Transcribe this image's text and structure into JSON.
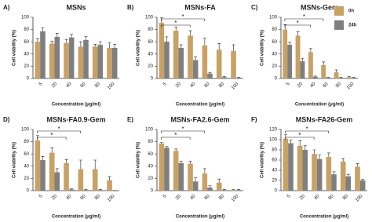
{
  "chart_data": [
    {
      "type": "bar",
      "panel_label": "A)",
      "title": "MSNs",
      "xlabel": "Concentration (μg/ml)",
      "ylabel": "Cell viability (%)",
      "categories": [
        "5",
        "20",
        "40",
        "60",
        "80",
        "100"
      ],
      "series": [
        {
          "color": "#c8a165",
          "values": [
            60,
            57,
            58,
            52,
            52,
            50
          ],
          "errors": [
            5,
            4,
            6,
            8,
            4,
            8
          ]
        },
        {
          "color": "#7f7f7f",
          "values": [
            77,
            68,
            67,
            63,
            55,
            50
          ],
          "errors": [
            6,
            6,
            5,
            6,
            5,
            6
          ]
        }
      ],
      "ylim": [
        0,
        100
      ],
      "yticks": [
        0,
        20,
        40,
        60,
        80,
        100
      ],
      "annotations": []
    },
    {
      "type": "bar",
      "panel_label": "B)",
      "title": "MSNs-FA",
      "xlabel": "Concentration (μg/ml)",
      "ylabel": "Cell viability (%)",
      "categories": [
        "5",
        "20",
        "40",
        "60",
        "80",
        "100"
      ],
      "series": [
        {
          "color": "#c8a165",
          "values": [
            91,
            78,
            70,
            54,
            47,
            45
          ],
          "errors": [
            8,
            6,
            8,
            12,
            10,
            10
          ]
        },
        {
          "color": "#7f7f7f",
          "values": [
            60,
            50,
            30,
            8,
            2,
            1
          ],
          "errors": [
            8,
            5,
            5,
            2,
            1,
            1
          ]
        }
      ],
      "ylim": [
        0,
        100
      ],
      "yticks": [
        0,
        20,
        40,
        60,
        80,
        100
      ],
      "annotations": [
        "*",
        "*"
      ]
    },
    {
      "type": "bar",
      "panel_label": "C)",
      "title": "MSNs-Gem",
      "xlabel": "Concentration (μg/ml)",
      "ylabel": "Cell viability (%)",
      "categories": [
        "5",
        "20",
        "40",
        "60",
        "80",
        "100"
      ],
      "series": [
        {
          "name": "0h",
          "color": "#c8a165",
          "values": [
            80,
            70,
            43,
            22,
            10,
            2
          ],
          "errors": [
            8,
            6,
            6,
            5,
            4,
            1
          ]
        },
        {
          "name": "24h",
          "color": "#7f7f7f",
          "values": [
            55,
            28,
            3,
            1,
            1,
            1
          ],
          "errors": [
            4,
            5,
            1,
            1,
            1,
            1
          ]
        }
      ],
      "ylim": [
        0,
        100
      ],
      "yticks": [
        0,
        20,
        40,
        60,
        80,
        100
      ],
      "annotations": [
        "*",
        "*"
      ]
    },
    {
      "type": "bar",
      "panel_label": "D)",
      "title": "MSNs-FA0.9-Gem",
      "xlabel": "Concentration (μg/ml)",
      "ylabel": "Cell viability (%)",
      "categories": [
        "5",
        "20",
        "40",
        "60",
        "80",
        "100"
      ],
      "series": [
        {
          "color": "#c8a165",
          "values": [
            82,
            62,
            45,
            35,
            35,
            17
          ],
          "errors": [
            8,
            8,
            6,
            15,
            15,
            6
          ]
        },
        {
          "color": "#7f7f7f",
          "values": [
            50,
            30,
            2,
            1,
            1,
            0
          ],
          "errors": [
            6,
            6,
            1,
            1,
            1,
            0
          ]
        }
      ],
      "ylim": [
        0,
        100
      ],
      "yticks": [
        0,
        20,
        40,
        60,
        80,
        100
      ],
      "annotations": [
        "*",
        "*"
      ]
    },
    {
      "type": "bar",
      "panel_label": "E)",
      "title": "MSNs-FA2.6-Gem",
      "xlabel": "Concentration (μg/ml)",
      "ylabel": "Cell viability (%)",
      "categories": [
        "5",
        "20",
        "40",
        "60",
        "80",
        "100"
      ],
      "series": [
        {
          "color": "#c8a165",
          "values": [
            77,
            65,
            44,
            28,
            13,
            1
          ],
          "errors": [
            2,
            3,
            4,
            8,
            6,
            1
          ]
        },
        {
          "color": "#7f7f7f",
          "values": [
            70,
            45,
            15,
            5,
            1,
            1
          ],
          "errors": [
            2,
            3,
            6,
            3,
            1,
            1
          ]
        }
      ],
      "ylim": [
        0,
        100
      ],
      "yticks": [
        0,
        20,
        40,
        60,
        80,
        100
      ],
      "annotations": [
        "*",
        "*"
      ]
    },
    {
      "type": "bar",
      "panel_label": "F)",
      "title": "MSNs-FA26-Gem",
      "xlabel": "Concentration (μg/ml)",
      "ylabel": "Cell viability (%)",
      "categories": [
        "5",
        "20",
        "40",
        "60",
        "80",
        "100"
      ],
      "series": [
        {
          "color": "#c8a165",
          "values": [
            102,
            88,
            72,
            66,
            57,
            47
          ],
          "errors": [
            8,
            10,
            8,
            8,
            6,
            6
          ]
        },
        {
          "color": "#7f7f7f",
          "values": [
            93,
            80,
            62,
            32,
            28,
            20
          ],
          "errors": [
            6,
            8,
            8,
            5,
            4,
            2
          ]
        }
      ],
      "ylim": [
        0,
        120
      ],
      "yticks": [
        0,
        20,
        40,
        60,
        80,
        100,
        120
      ],
      "annotations": [
        "*",
        "*"
      ]
    }
  ]
}
